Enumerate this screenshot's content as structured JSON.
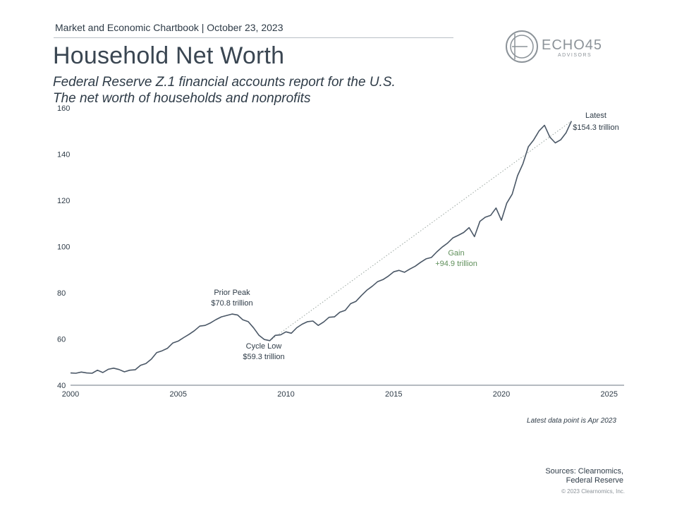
{
  "header": {
    "chartbook": "Market and Economic Chartbook | October 23, 2023",
    "title": "Household Net Worth",
    "subtitle_line1": "Federal Reserve Z.1 financial accounts report for the U.S.",
    "subtitle_line2": "The net worth of households and nonprofits"
  },
  "logo": {
    "name": "ECHO45",
    "tagline": "ADVISORS",
    "icon": "echo45-circle-logo-icon"
  },
  "colors": {
    "line": "#4a5766",
    "trend": "#9aa6a0",
    "gain": "#5f8f5a",
    "text": "#2e3b47"
  },
  "chart_data": {
    "type": "line",
    "ylim": [
      40,
      160
    ],
    "xlim": [
      2000,
      2025.6
    ],
    "yticks": [
      "40",
      "60",
      "80",
      "100",
      "120",
      "140",
      "160"
    ],
    "xticks": [
      "2000",
      "2005",
      "2010",
      "2015",
      "2020",
      "2025"
    ],
    "grid": false,
    "series": [
      {
        "x": [
          2000.0,
          2000.25,
          2000.5,
          2000.75,
          2001.0,
          2001.25,
          2001.5,
          2001.75,
          2002.0,
          2002.25,
          2002.5,
          2002.75,
          2003.0,
          2003.25,
          2003.5,
          2003.75,
          2004.0,
          2004.25,
          2004.5,
          2004.75,
          2005.0,
          2005.25,
          2005.5,
          2005.75,
          2006.0,
          2006.25,
          2006.5,
          2006.75,
          2007.0,
          2007.25,
          2007.5,
          2007.75,
          2008.0,
          2008.25,
          2008.5,
          2008.75,
          2009.0,
          2009.25,
          2009.5,
          2009.75,
          2010.0,
          2010.25,
          2010.5,
          2010.75,
          2011.0,
          2011.25,
          2011.5,
          2011.75,
          2012.0,
          2012.25,
          2012.5,
          2012.75,
          2013.0,
          2013.25,
          2013.5,
          2013.75,
          2014.0,
          2014.25,
          2014.5,
          2014.75,
          2015.0,
          2015.25,
          2015.5,
          2015.75,
          2016.0,
          2016.25,
          2016.5,
          2016.75,
          2017.0,
          2017.25,
          2017.5,
          2017.75,
          2018.0,
          2018.25,
          2018.5,
          2018.75,
          2019.0,
          2019.25,
          2019.5,
          2019.75,
          2020.0,
          2020.25,
          2020.5,
          2020.75,
          2021.0,
          2021.25,
          2021.5,
          2021.75,
          2022.0,
          2022.25,
          2022.5,
          2022.75,
          2023.0,
          2023.25
        ],
        "y": [
          45.3,
          45.2,
          45.7,
          45.3,
          45.2,
          46.5,
          45.5,
          46.9,
          47.4,
          46.8,
          45.8,
          46.5,
          46.7,
          48.6,
          49.4,
          51.3,
          54.1,
          54.9,
          56.0,
          58.3,
          59.1,
          60.6,
          62.0,
          63.6,
          65.6,
          65.9,
          67.0,
          68.4,
          69.6,
          70.2,
          70.8,
          70.4,
          68.3,
          67.5,
          64.8,
          61.6,
          59.8,
          59.3,
          61.6,
          61.8,
          63.1,
          62.5,
          64.9,
          66.4,
          67.5,
          67.8,
          65.9,
          67.4,
          69.4,
          69.6,
          71.6,
          72.4,
          75.3,
          76.3,
          78.8,
          81.1,
          82.8,
          84.8,
          85.7,
          87.2,
          89.1,
          89.7,
          88.9,
          90.3,
          91.5,
          93.2,
          94.7,
          95.3,
          97.7,
          99.8,
          101.5,
          103.8,
          104.9,
          106.1,
          108.2,
          104.3,
          110.9,
          112.7,
          113.5,
          116.7,
          111.4,
          118.8,
          122.7,
          130.7,
          135.9,
          143.2,
          146.2,
          150.1,
          152.5,
          147.4,
          144.9,
          146.2,
          149.2,
          154.3
        ]
      }
    ],
    "trend_line": {
      "from": [
        2009.25,
        59.3
      ],
      "to": [
        2023.25,
        154.3
      ]
    },
    "annotations": {
      "peak": {
        "line1": "Prior Peak",
        "line2": "$70.8 trillion"
      },
      "low": {
        "line1": "Cycle Low",
        "line2": "$59.3 trillion"
      },
      "gain": {
        "line1": "Gain",
        "line2": "+94.9 trillion"
      },
      "latest": {
        "line1": "Latest",
        "line2": "$154.3 trillion"
      }
    }
  },
  "footer": {
    "note": "Latest data point is Apr 2023",
    "sources_line1": "Sources: Clearnomics,",
    "sources_line2": "Federal Reserve",
    "copyright": "© 2023 Clearnomics, Inc."
  }
}
